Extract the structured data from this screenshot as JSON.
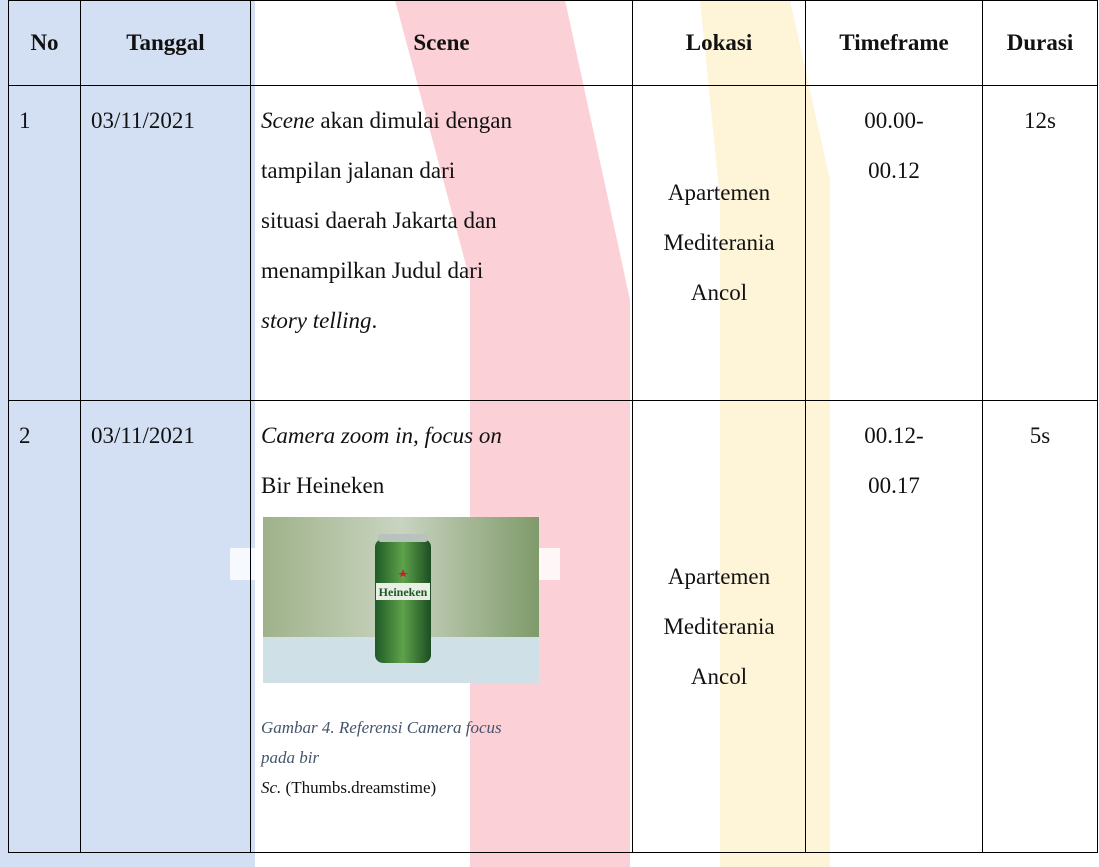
{
  "table": {
    "header": [
      "No",
      "Tanggal",
      "Scene",
      "Lokasi",
      "Timeframe",
      "Durasi"
    ],
    "rows": [
      {
        "no": "1",
        "date": "03/11/2021",
        "scene": [
          [
            {
              "text": "Scene",
              "italic": true
            },
            {
              "text": " akan dimulai dengan"
            }
          ],
          [
            {
              "text": "tampilan jalanan dari"
            }
          ],
          [
            {
              "text": "situasi daerah Jakarta dan"
            }
          ],
          [
            {
              "text": "menampilkan Judul dari"
            }
          ],
          [
            {
              "text": "story telling",
              "italic": true
            },
            {
              "text": "."
            }
          ]
        ],
        "location": "Apartemen Mediterania Ancol",
        "timeframe": [
          "00.00-",
          "00.12"
        ],
        "duration": "12s"
      },
      {
        "no": "2",
        "date": "03/11/2021",
        "scene": [
          [
            {
              "text": "Camera zoom in, focus on",
              "italic": true
            }
          ],
          [
            {
              "text": "Bir Heineken"
            }
          ]
        ],
        "image_label": "Heineken",
        "caption": [
          "Gambar 4. Referensi Camera focus",
          "pada bir"
        ],
        "source": [
          {
            "text": "Sc.",
            "italic": true
          },
          {
            "text": " (Thumbs.dreamstime)"
          }
        ],
        "location": "Apartemen Mediterania Ancol",
        "timeframe": [
          "00.12-",
          "00.17"
        ],
        "duration": "5s"
      }
    ]
  }
}
